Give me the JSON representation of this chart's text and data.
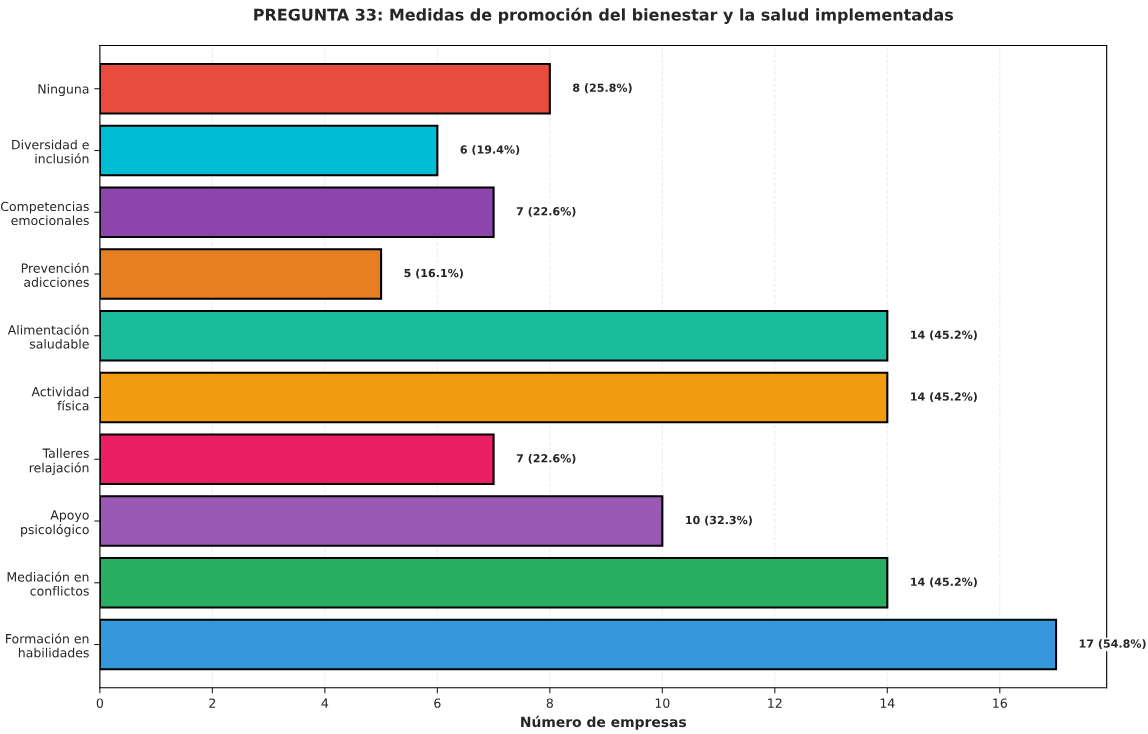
{
  "chart_data": {
    "type": "bar",
    "orientation": "horizontal",
    "title": "PREGUNTA 33: Medidas de promoción del bienestar y la salud implementadas",
    "xlabel": "Número de empresas",
    "categories": [
      "Ninguna",
      "Diversidad e\ninclusión",
      "Competencias\nemocionales",
      "Prevención\nadicciones",
      "Alimentación\nsaludable",
      "Actividad\nfísica",
      "Talleres\nrelajación",
      "Apoyo\npsicológico",
      "Mediación en\nconflictos",
      "Formación en\nhabilidades"
    ],
    "values": [
      8,
      6,
      7,
      5,
      14,
      14,
      7,
      10,
      14,
      17
    ],
    "colors": [
      "#e74c3c",
      "#00bcd4",
      "#8e44ad",
      "#e67e22",
      "#1abc9c",
      "#f39c12",
      "#e91e63",
      "#9b59b6",
      "#27ae60",
      "#3498db"
    ],
    "value_labels": [
      "8 (25.8%)",
      "6 (19.4%)",
      "7 (22.6%)",
      "5 (16.1%)",
      "14 (45.2%)",
      "14 (45.2%)",
      "7 (22.6%)",
      "10 (32.3%)",
      "14 (45.2%)",
      "17 (54.8%)"
    ],
    "xlim": [
      0,
      17.9
    ],
    "xticks": [
      0,
      2,
      4,
      6,
      8,
      10,
      12,
      14,
      16
    ],
    "grid": "x"
  }
}
